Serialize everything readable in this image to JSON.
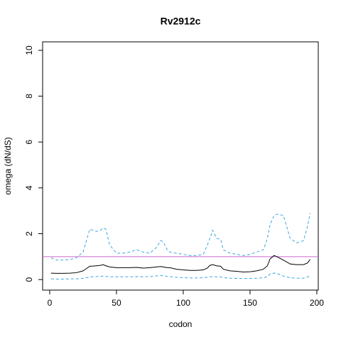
{
  "chart_data": {
    "type": "line",
    "title": "Rv2912c",
    "xlabel": "codon",
    "ylabel": "omega (dN/dS)",
    "x": [
      1,
      5,
      10,
      15,
      20,
      25,
      28,
      30,
      35,
      38,
      40,
      42,
      45,
      50,
      55,
      60,
      65,
      70,
      75,
      80,
      83,
      85,
      88,
      90,
      95,
      100,
      105,
      110,
      115,
      118,
      120,
      122,
      125,
      128,
      130,
      135,
      140,
      145,
      150,
      155,
      160,
      163,
      165,
      168,
      170,
      175,
      180,
      185,
      190,
      193,
      195
    ],
    "series": [
      {
        "color": "#000000",
        "dash": false,
        "values": [
          0.28,
          0.27,
          0.27,
          0.28,
          0.3,
          0.38,
          0.5,
          0.58,
          0.6,
          0.62,
          0.65,
          0.6,
          0.55,
          0.52,
          0.52,
          0.52,
          0.53,
          0.5,
          0.52,
          0.55,
          0.57,
          0.55,
          0.52,
          0.52,
          0.45,
          0.42,
          0.4,
          0.4,
          0.42,
          0.5,
          0.62,
          0.65,
          0.6,
          0.58,
          0.45,
          0.38,
          0.36,
          0.33,
          0.34,
          0.38,
          0.45,
          0.6,
          0.9,
          1.05,
          1.0,
          0.85,
          0.68,
          0.65,
          0.65,
          0.72,
          0.88
        ]
      },
      {
        "color": "#3aa7e0",
        "dash": true,
        "values": [
          0.95,
          0.85,
          0.85,
          0.87,
          0.95,
          1.2,
          1.8,
          2.2,
          2.1,
          2.15,
          2.25,
          2.2,
          1.5,
          1.15,
          1.15,
          1.2,
          1.3,
          1.2,
          1.15,
          1.4,
          1.7,
          1.65,
          1.3,
          1.2,
          1.15,
          1.1,
          1.05,
          1.05,
          1.1,
          1.5,
          1.8,
          2.15,
          1.8,
          1.75,
          1.3,
          1.15,
          1.1,
          1.05,
          1.1,
          1.2,
          1.3,
          1.8,
          2.4,
          2.8,
          2.85,
          2.8,
          1.8,
          1.6,
          1.7,
          2.3,
          2.9
        ]
      },
      {
        "color": "#3aa7e0",
        "dash": true,
        "values": [
          0.03,
          0.02,
          0.02,
          0.03,
          0.03,
          0.05,
          0.09,
          0.12,
          0.13,
          0.14,
          0.15,
          0.14,
          0.12,
          0.12,
          0.12,
          0.12,
          0.13,
          0.12,
          0.13,
          0.16,
          0.18,
          0.17,
          0.14,
          0.13,
          0.1,
          0.08,
          0.07,
          0.07,
          0.08,
          0.1,
          0.12,
          0.13,
          0.12,
          0.11,
          0.08,
          0.06,
          0.05,
          0.05,
          0.05,
          0.06,
          0.08,
          0.12,
          0.25,
          0.28,
          0.27,
          0.15,
          0.08,
          0.06,
          0.06,
          0.1,
          0.2
        ]
      }
    ],
    "hline": {
      "value": 1,
      "color": "#cc66cc"
    },
    "xlim": [
      -5.3,
      201.1
    ],
    "xticks": [
      0,
      50,
      100,
      150,
      200
    ],
    "ylim": [
      -0.46,
      10.37
    ],
    "yticks": [
      0,
      2,
      4,
      6,
      8,
      10
    ]
  }
}
